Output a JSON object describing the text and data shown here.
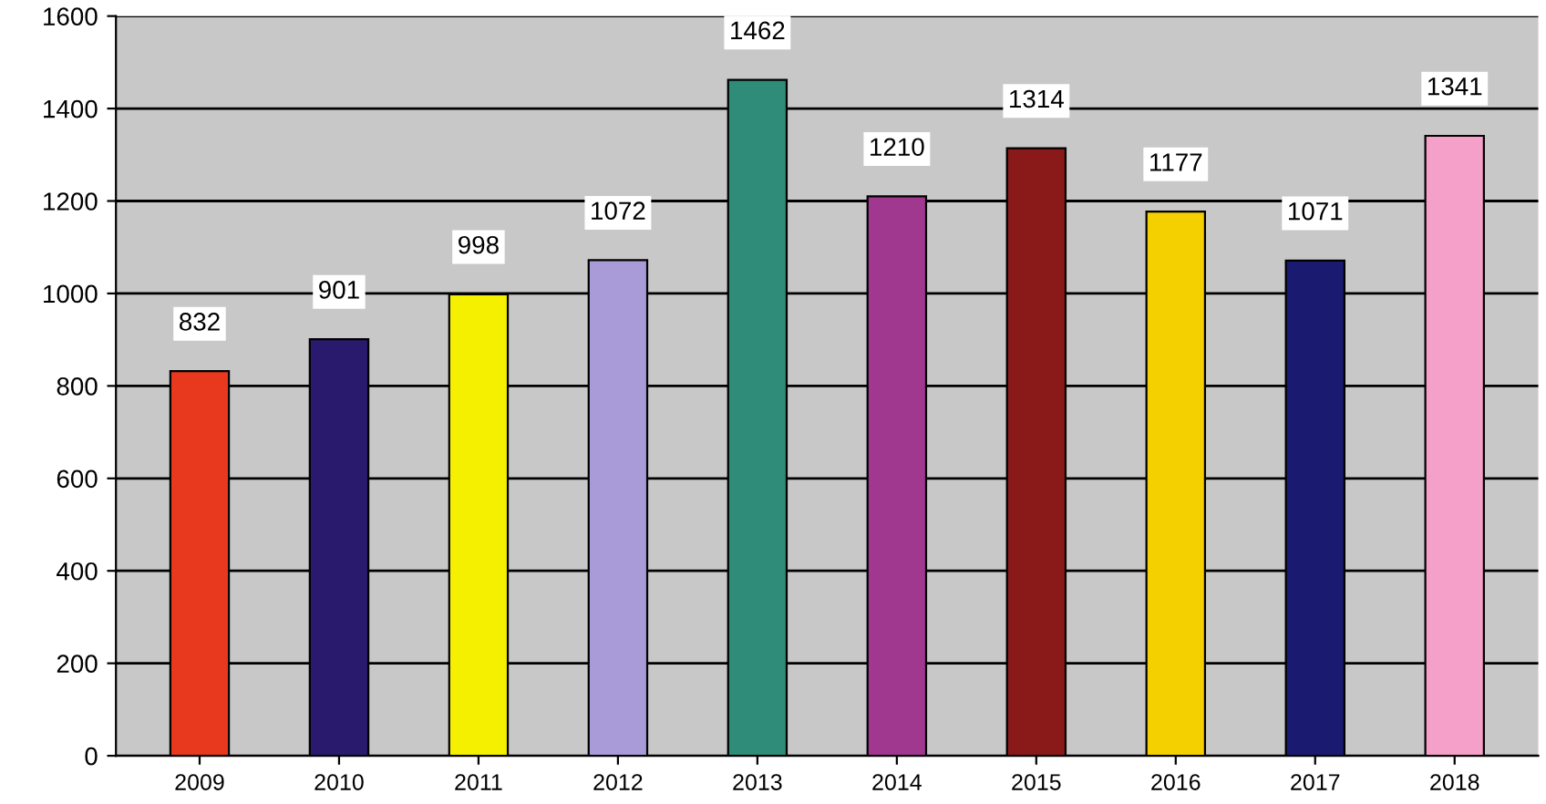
{
  "chart_data": {
    "type": "bar",
    "categories": [
      "2009",
      "2010",
      "2011",
      "2012",
      "2013",
      "2014",
      "2015",
      "2016",
      "2017",
      "2018"
    ],
    "values": [
      832,
      901,
      998,
      1072,
      1462,
      1210,
      1314,
      1177,
      1071,
      1341
    ],
    "colors": [
      "#e8381e",
      "#2a1a6e",
      "#f5f000",
      "#a99ad8",
      "#2e8c78",
      "#a03890",
      "#8a1a1a",
      "#f5d000",
      "#1a1a70",
      "#f5a0c8"
    ],
    "ylim": [
      0,
      1600
    ],
    "yticks": [
      0,
      200,
      400,
      600,
      800,
      1000,
      1200,
      1400,
      1600
    ],
    "grid": "y",
    "data_labels": true
  }
}
